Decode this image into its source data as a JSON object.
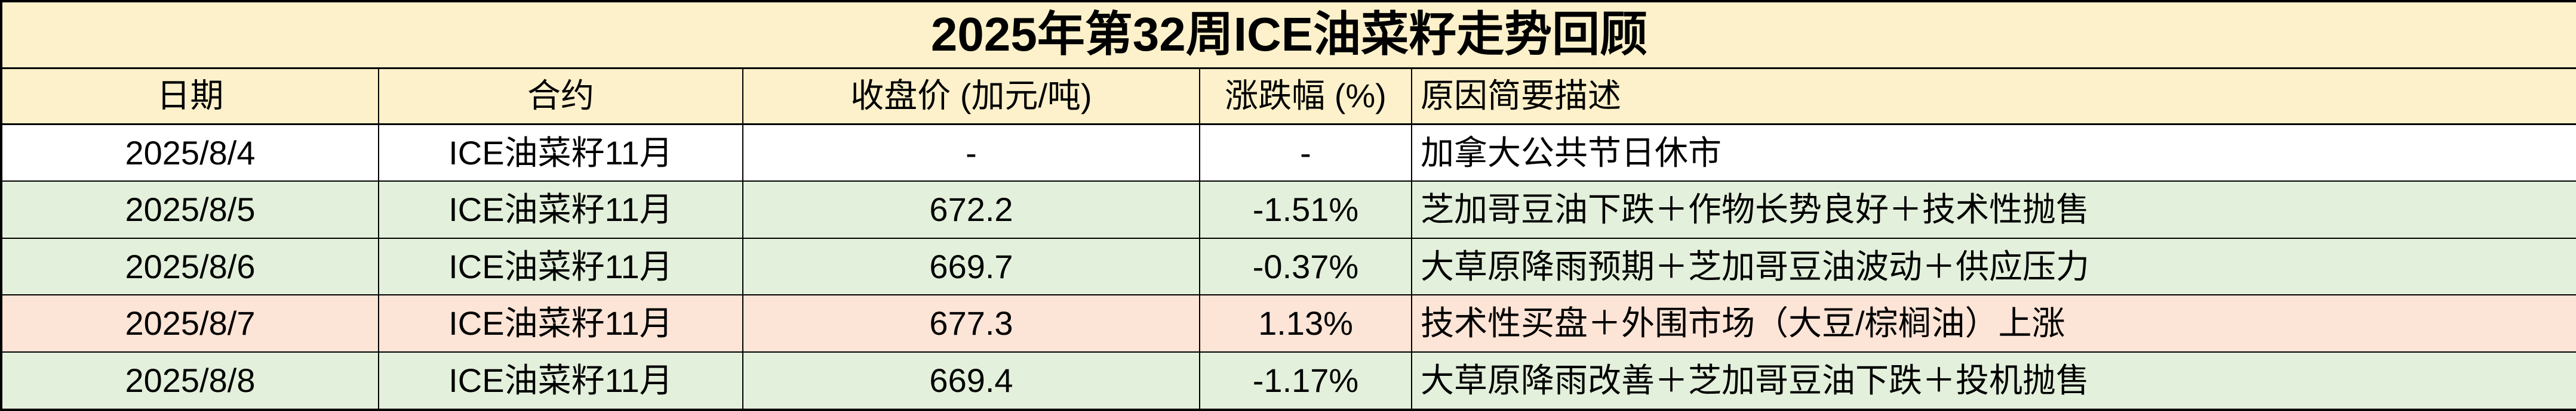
{
  "chart_data": {
    "type": "table",
    "title": "2025年第32周ICE油菜籽走势回顾",
    "columns": [
      "日期",
      "合约",
      "收盘价 (加元/吨)",
      "涨跌幅 (%)",
      "原因简要描述"
    ],
    "rows": [
      [
        "2025/8/4",
        "ICE油菜籽11月",
        "-",
        "-",
        "加拿大公共节日休市"
      ],
      [
        "2025/8/5",
        "ICE油菜籽11月",
        "672.2",
        "-1.51%",
        "芝加哥豆油下跌＋作物长势良好＋技术性抛售"
      ],
      [
        "2025/8/6",
        "ICE油菜籽11月",
        "669.7",
        "-0.37%",
        "大草原降雨预期＋芝加哥豆油波动＋供应压力"
      ],
      [
        "2025/8/7",
        "ICE油菜籽11月",
        "677.3",
        "1.13%",
        "技术性买盘＋外围市场（大豆/棕榈油）上涨"
      ],
      [
        "2025/8/8",
        "ICE油菜籽11月",
        "669.4",
        "-1.17%",
        "大草原降雨改善＋芝加哥豆油下跌＋投机抛售"
      ]
    ],
    "row_colors": [
      "#FFFFFF",
      "#E3F0DB",
      "#E3F0DB",
      "#FCE4D6",
      "#E3F0DB"
    ],
    "legend_hint": {
      "down_row_bg": "#E3F0DB",
      "up_row_bg": "#FCE4D6",
      "no_trade_row_bg": "#FFFFFF"
    }
  },
  "colors": {
    "header_bg": "#FCF1CA",
    "border": "#000000",
    "text": "#000000"
  }
}
